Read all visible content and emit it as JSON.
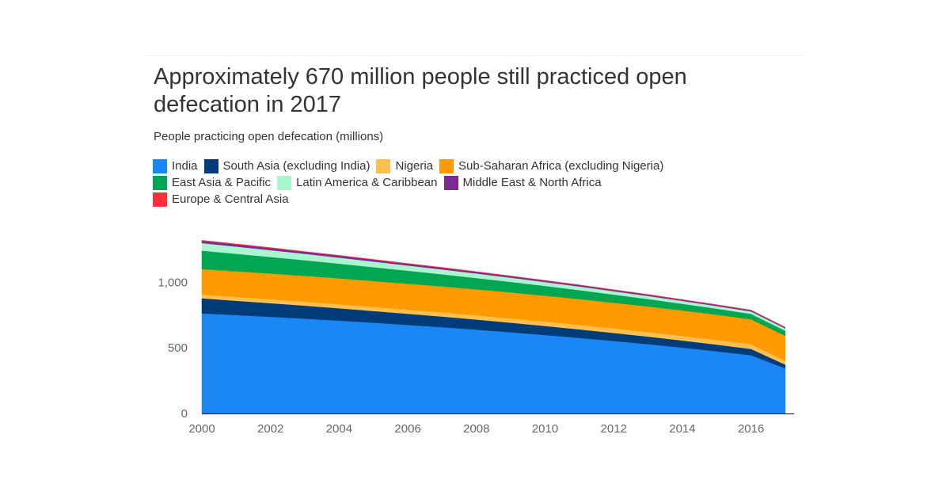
{
  "chart": {
    "title": "Approximately 670 million people still practiced open defecation in 2017",
    "subtitle": "People practicing open defecation (millions)"
  },
  "colors": {
    "axis": "#333333",
    "tick_text": "#666666",
    "title_text": "#333333"
  },
  "chart_data": {
    "type": "area",
    "stacked": true,
    "title": "Approximately 670 million people still practiced open defecation in 2017",
    "subtitle": "People practicing open defecation (millions)",
    "xlabel": "",
    "ylabel": "",
    "x": [
      2000,
      2001,
      2002,
      2003,
      2004,
      2005,
      2006,
      2007,
      2008,
      2009,
      2010,
      2011,
      2012,
      2013,
      2014,
      2015,
      2016,
      2017
    ],
    "xlim": [
      2000,
      2017
    ],
    "ylim": [
      0,
      1300
    ],
    "x_ticks": [
      2000,
      2002,
      2004,
      2006,
      2008,
      2010,
      2012,
      2014,
      2016
    ],
    "y_ticks": [
      0,
      500,
      1000
    ],
    "y_tick_labels": [
      "0",
      "500",
      "1,000"
    ],
    "grid": false,
    "legend_position": "top",
    "series": [
      {
        "name": "India",
        "color": "#1a87f5",
        "values": [
          763,
          750,
          737,
          723,
          708,
          692,
          675,
          658,
          639,
          619,
          598,
          576,
          553,
          528,
          502,
          474,
          444,
          344
        ]
      },
      {
        "name": "South Asia (excluding India)",
        "color": "#003b7a",
        "values": [
          115,
          109,
          104,
          99,
          94,
          89,
          85,
          81,
          77,
          73,
          69,
          65,
          61,
          58,
          54,
          51,
          48,
          28
        ]
      },
      {
        "name": "Nigeria",
        "color": "#ffc050",
        "values": [
          28,
          29,
          29,
          30,
          30,
          31,
          31,
          32,
          32,
          33,
          33,
          34,
          34,
          35,
          35,
          36,
          36,
          30
        ]
      },
      {
        "name": "Sub-Saharan Africa (excluding Nigeria)",
        "color": "#ff9a00",
        "values": [
          195,
          196,
          197,
          197,
          198,
          198,
          198,
          198,
          198,
          198,
          198,
          197,
          196,
          195,
          194,
          192,
          190,
          190
        ]
      },
      {
        "name": "East Asia & Pacific",
        "color": "#00a650",
        "values": [
          140,
          133,
          126,
          119,
          112,
          105,
          99,
          92,
          86,
          80,
          74,
          68,
          62,
          56,
          51,
          46,
          41,
          38
        ]
      },
      {
        "name": "Latin America & Caribbean",
        "color": "#a8f5d0",
        "values": [
          58,
          55,
          52,
          49,
          46,
          43,
          40,
          37,
          35,
          32,
          30,
          28,
          26,
          24,
          22,
          20,
          19,
          18
        ]
      },
      {
        "name": "Middle East & North Africa",
        "color": "#7b2b90",
        "values": [
          17,
          16,
          15,
          14,
          14,
          13,
          12,
          12,
          11,
          11,
          10,
          10,
          9,
          9,
          8,
          8,
          8,
          7
        ]
      },
      {
        "name": "Europe & Central Asia",
        "color": "#ff2f3a",
        "values": [
          4,
          4,
          4,
          3,
          3,
          3,
          3,
          3,
          3,
          2,
          2,
          2,
          2,
          2,
          2,
          2,
          2,
          2
        ]
      }
    ]
  }
}
